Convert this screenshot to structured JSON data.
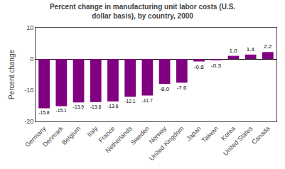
{
  "chart_data": {
    "type": "bar",
    "title": "Percent change in manufacturing unit labor costs (U.S.\ndollar basis), by country, 2000",
    "ylabel": "Percent change",
    "categories": [
      "Germany",
      "Denmark",
      "Belgium",
      "Italy",
      "France",
      "Netherlands",
      "Sweden",
      "Norway",
      "United Kingdom",
      "Japan",
      "Taiwan",
      "Korea",
      "United States",
      "Canada"
    ],
    "values": [
      -15.8,
      -15.1,
      -13.9,
      -13.8,
      -13.6,
      -12.1,
      -11.7,
      -8.0,
      -7.6,
      -0.8,
      -0.3,
      1.0,
      1.4,
      2.2
    ],
    "value_labels": [
      "-15.8",
      "-15.1",
      "-13.9",
      "-13.8",
      "-13.6",
      "-12.1",
      "-11.7",
      "-8.0",
      "-7.6",
      "-0.8",
      "-0.3",
      "1.0",
      "1.4",
      "2.2"
    ],
    "color": "#800080",
    "ylim": [
      -20,
      10
    ],
    "yticks": [
      -20,
      -10,
      0,
      10
    ],
    "grid": false,
    "data_labels": true
  }
}
